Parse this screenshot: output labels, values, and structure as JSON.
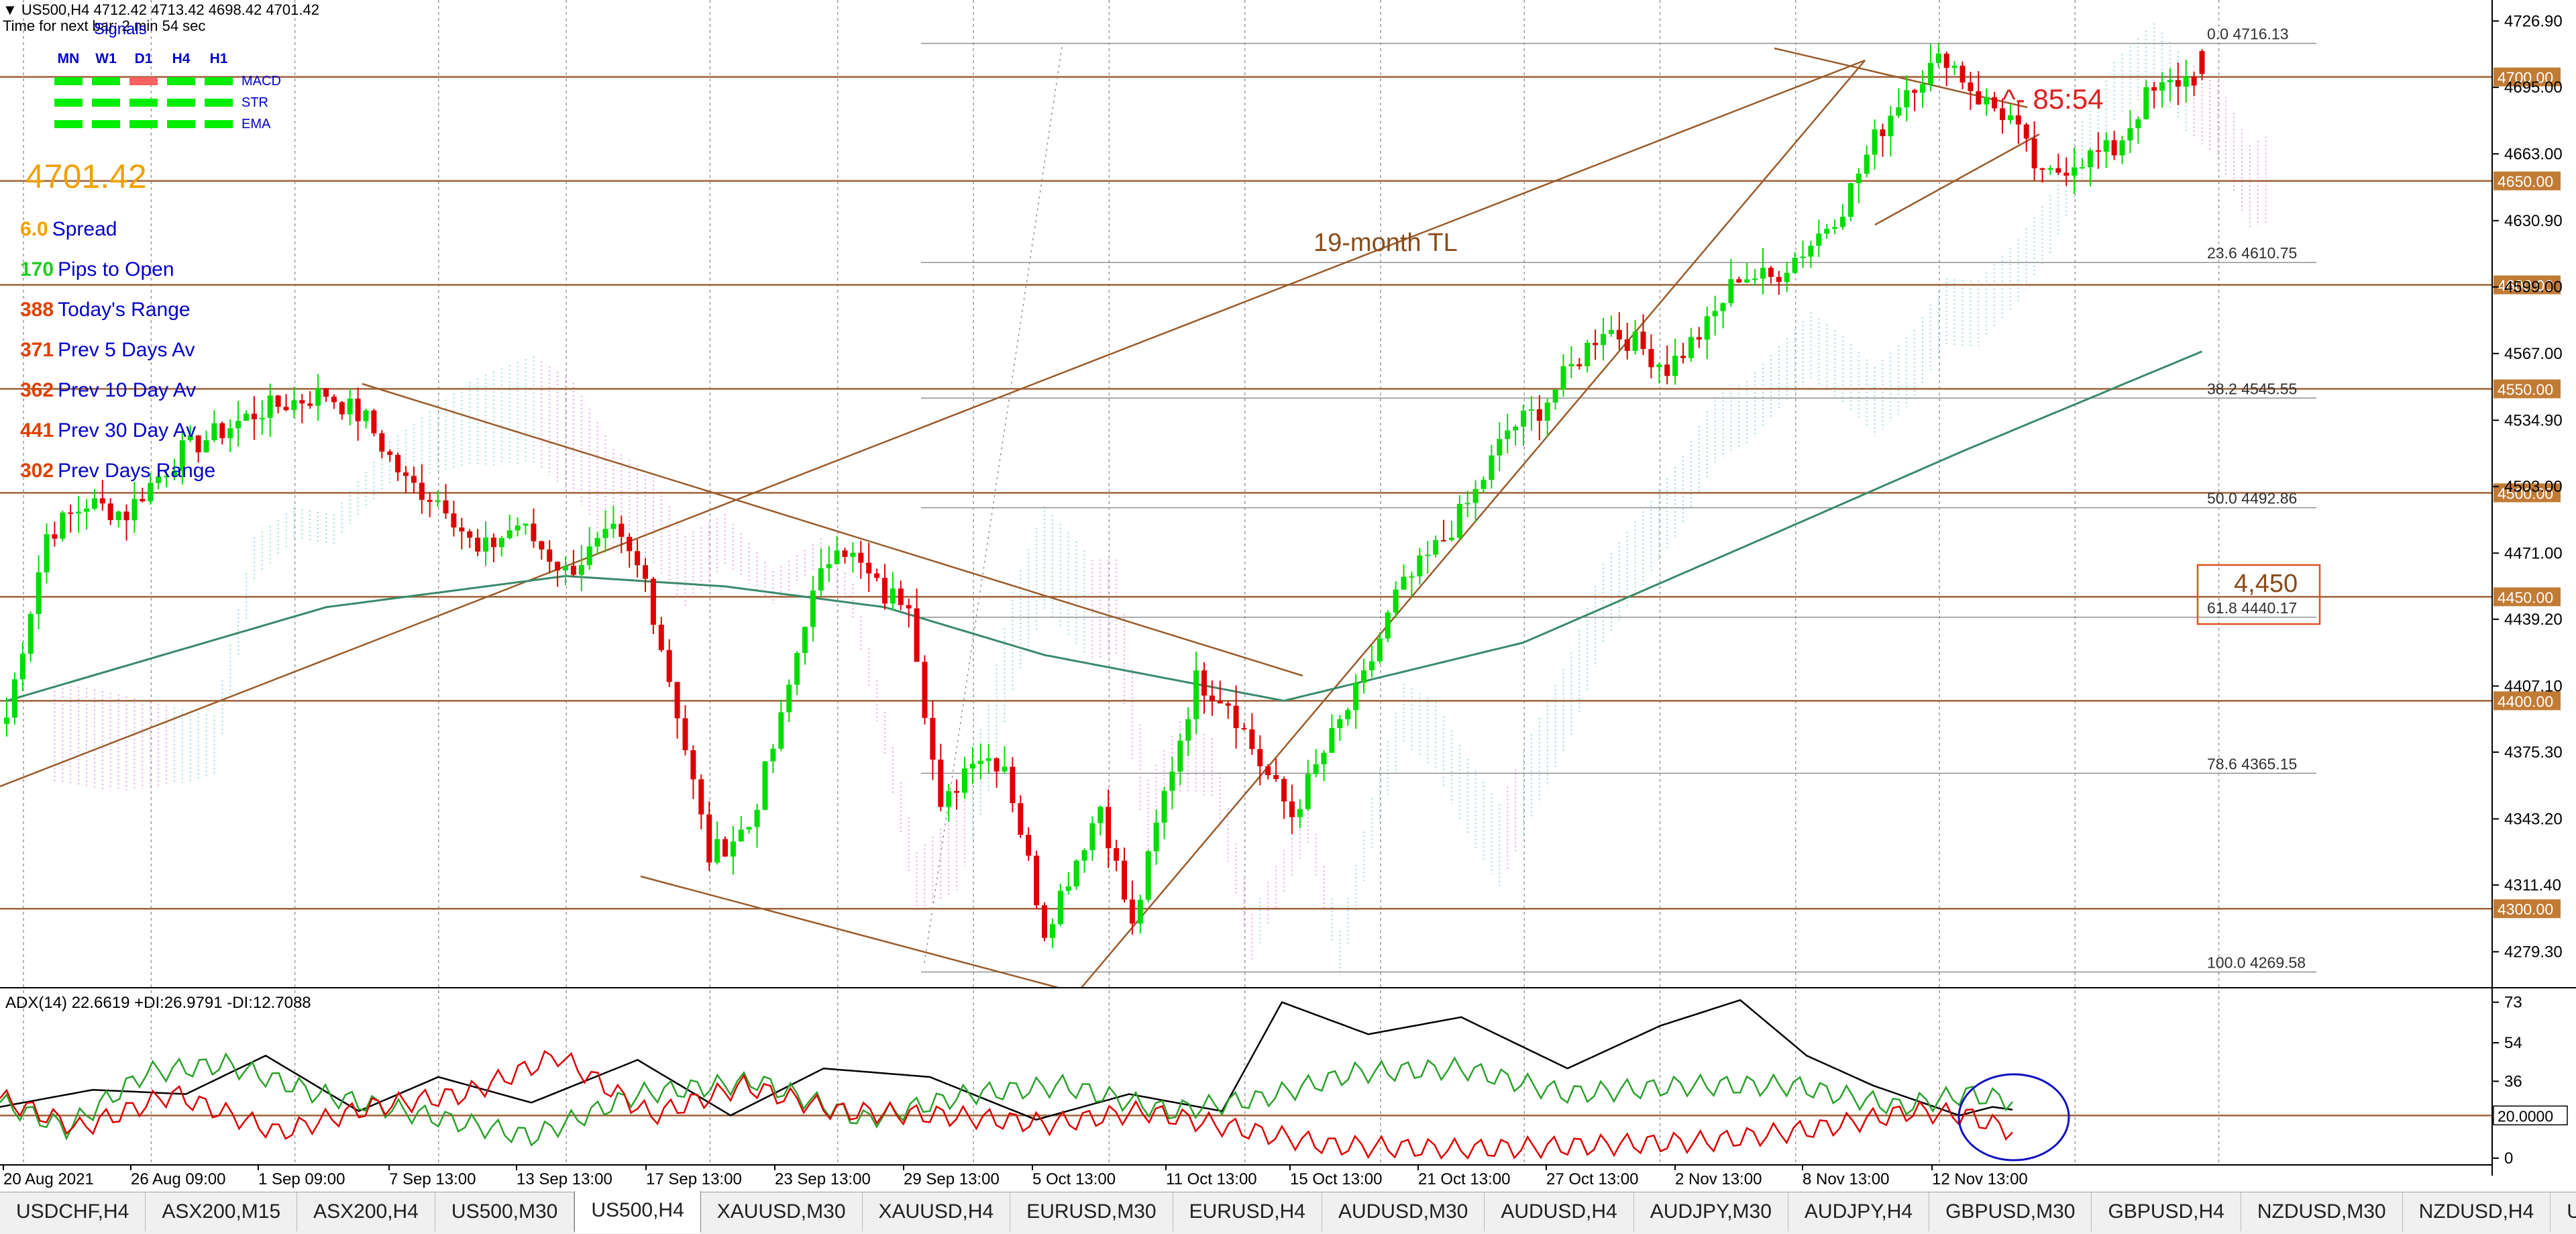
{
  "header": {
    "symbol_line": "US500,H4  4712.42 4713.42 4698.42 4701.42",
    "timer_line": "Time for next bar: 2 min 54 sec"
  },
  "signals": {
    "title": "Signals",
    "timeframes": [
      "MN",
      "W1",
      "D1",
      "H4",
      "H1"
    ],
    "rows": [
      {
        "name": "MACD",
        "colors": [
          "#00ee00",
          "#00ee00",
          "#ff6060",
          "#00ee00",
          "#00ee00"
        ]
      },
      {
        "name": "STR",
        "colors": [
          "#00ee00",
          "#00ee00",
          "#00ee00",
          "#00ee00",
          "#00ee00"
        ]
      },
      {
        "name": "EMA",
        "colors": [
          "#00ee00",
          "#00ee00",
          "#00ee00",
          "#00ee00",
          "#00ee00"
        ]
      }
    ]
  },
  "stats": {
    "price": "4701.42",
    "rows": [
      {
        "value": "6.0",
        "label": "Spread",
        "value_color": "#f0a000"
      },
      {
        "value": "170",
        "label": "Pips to Open",
        "value_color": "#22cc22"
      },
      {
        "value": "388",
        "label": "Today's Range",
        "value_color": "#e04000"
      },
      {
        "value": "371",
        "label": "Prev 5 Days Av",
        "value_color": "#e04000"
      },
      {
        "value": "362",
        "label": "Prev 10 Day Av",
        "value_color": "#e04000"
      },
      {
        "value": "441",
        "label": "Prev 30 Day Av",
        "value_color": "#e04000"
      },
      {
        "value": "302",
        "label": "Prev Days Range",
        "value_color": "#e04000"
      }
    ]
  },
  "annotations": {
    "trendline_label": "19-month TL",
    "countdown": "^- 85:54",
    "box_label": "4,450"
  },
  "chart_data": {
    "type": "candlestick",
    "symbol": "US500",
    "timeframe": "H4",
    "ohlc_last": {
      "open": 4712.42,
      "high": 4713.42,
      "low": 4698.42,
      "close": 4701.42
    },
    "ylim": [
      4262,
      4737
    ],
    "y_ticks": [
      "4726.90",
      "4695.00",
      "4663.00",
      "4630.90",
      "4599.00",
      "4567.00",
      "4534.90",
      "4503.00",
      "4471.00",
      "4439.20",
      "4407.10",
      "4375.30",
      "4343.20",
      "4311.40",
      "4279.30"
    ],
    "x_ticks": [
      "20 Aug 2021",
      "26 Aug 09:00",
      "1 Sep 09:00",
      "7 Sep 13:00",
      "13 Sep 13:00",
      "17 Sep 13:00",
      "23 Sep 13:00",
      "29 Sep 13:00",
      "5 Oct 13:00",
      "11 Oct 13:00",
      "15 Oct 13:00",
      "21 Oct 13:00",
      "27 Oct 13:00",
      "2 Nov 13:00",
      "8 Nov 13:00",
      "12 Nov 13:00"
    ],
    "horizontal_levels": [
      {
        "label": "4700.00",
        "value": 4700
      },
      {
        "label": "4650.00",
        "value": 4650
      },
      {
        "label": "4600.00",
        "value": 4600
      },
      {
        "label": "4550.00",
        "value": 4550
      },
      {
        "label": "4500.00",
        "value": 4500
      },
      {
        "label": "4450.00",
        "value": 4450
      },
      {
        "label": "4400.00",
        "value": 4400
      },
      {
        "label": "4300.00",
        "value": 4300
      }
    ],
    "fibonacci": [
      {
        "ratio": "0.0",
        "price": "4716.13"
      },
      {
        "ratio": "23.6",
        "price": "4610.75"
      },
      {
        "ratio": "38.2",
        "price": "4545.55"
      },
      {
        "ratio": "50.0",
        "price": "4492.86"
      },
      {
        "ratio": "61.8",
        "price": "4440.17"
      },
      {
        "ratio": "78.6",
        "price": "4365.15"
      },
      {
        "ratio": "100.0",
        "price": "4269.58"
      }
    ],
    "price_path": [
      [
        0,
        4392
      ],
      [
        5,
        4480
      ],
      [
        10,
        4495
      ],
      [
        15,
        4490
      ],
      [
        17,
        4500
      ],
      [
        22,
        4520
      ],
      [
        32,
        4540
      ],
      [
        40,
        4548
      ],
      [
        45,
        4535
      ],
      [
        50,
        4505
      ],
      [
        55,
        4495
      ],
      [
        59,
        4470
      ],
      [
        64,
        4485
      ],
      [
        70,
        4462
      ],
      [
        76,
        4480
      ],
      [
        80,
        4458
      ],
      [
        84,
        4395
      ],
      [
        88,
        4325
      ],
      [
        93,
        4340
      ],
      [
        97,
        4390
      ],
      [
        100,
        4440
      ],
      [
        104,
        4478
      ],
      [
        110,
        4450
      ],
      [
        113,
        4450
      ],
      [
        117,
        4345
      ],
      [
        121,
        4375
      ],
      [
        125,
        4370
      ],
      [
        130,
        4290
      ],
      [
        137,
        4350
      ],
      [
        141,
        4290
      ],
      [
        145,
        4355
      ],
      [
        149,
        4410
      ],
      [
        153,
        4400
      ],
      [
        157,
        4370
      ],
      [
        161,
        4345
      ],
      [
        165,
        4375
      ],
      [
        170,
        4410
      ],
      [
        174,
        4450
      ],
      [
        180,
        4478
      ],
      [
        184,
        4500
      ],
      [
        188,
        4530
      ],
      [
        192,
        4540
      ],
      [
        196,
        4560
      ],
      [
        200,
        4580
      ],
      [
        204,
        4572
      ],
      [
        208,
        4560
      ],
      [
        213,
        4580
      ],
      [
        217,
        4605
      ],
      [
        221,
        4603
      ],
      [
        226,
        4620
      ],
      [
        230,
        4638
      ],
      [
        234,
        4670
      ],
      [
        238,
        4695
      ],
      [
        243,
        4710
      ],
      [
        247,
        4690
      ],
      [
        251,
        4680
      ],
      [
        255,
        4650
      ],
      [
        259,
        4660
      ],
      [
        264,
        4665
      ],
      [
        268,
        4690
      ],
      [
        272,
        4698
      ],
      [
        275,
        4701.42
      ]
    ],
    "ema_path": [
      [
        0,
        4400
      ],
      [
        40,
        4445
      ],
      [
        70,
        4460
      ],
      [
        90,
        4455
      ],
      [
        110,
        4445
      ],
      [
        130,
        4422
      ],
      [
        160,
        4400
      ],
      [
        190,
        4428
      ],
      [
        220,
        4478
      ],
      [
        245,
        4520
      ],
      [
        275,
        4568
      ]
    ],
    "adx": {
      "title": "ADX(14) 22.6619 +DI:26.9791 -DI:12.7088",
      "adx": 22.6619,
      "plus_di": 26.9791,
      "minus_di": 12.7088,
      "ylim": [
        0,
        76
      ],
      "y_ticks": [
        "73",
        "54",
        "36",
        "18",
        "0"
      ],
      "level": "20.0000",
      "series": [
        {
          "key": "adx",
          "color": "#000000"
        },
        {
          "key": "plus_di",
          "color": "#2aa22a"
        },
        {
          "key": "minus_di",
          "color": "#dd0000"
        }
      ]
    }
  },
  "tabs": {
    "items": [
      "USDCHF,H4",
      "ASX200,M15",
      "ASX200,H4",
      "US500,M30",
      "US500,H4",
      "XAUUSD,M30",
      "XAUUSD,H4",
      "EURUSD,M30",
      "EURUSD,H4",
      "AUDUSD,M30",
      "AUDUSD,H4",
      "AUDJPY,M30",
      "AUDJPY,H4",
      "GBPUSD,M30",
      "GBPUSD,H4",
      "NZDUSD,M30",
      "NZDUSD,H4",
      "USD"
    ],
    "active": "US500,H4"
  }
}
